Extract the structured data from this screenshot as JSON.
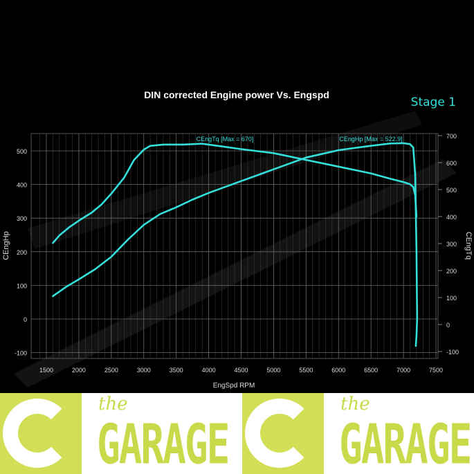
{
  "chart_data": {
    "type": "line",
    "title": "DIN corrected Engine power Vs. Engspd",
    "badge": "Stage 1",
    "xlabel": "EngSpd RPM",
    "ylabel_left": "CEngHp",
    "ylabel_right": "CEngTq",
    "xlim": [
      1300,
      7600
    ],
    "ylim_left": [
      -110,
      555
    ],
    "ylim_right": [
      -115,
      715
    ],
    "x_ticks": [
      1500,
      2000,
      2500,
      3000,
      3500,
      4000,
      4500,
      5000,
      5500,
      6000,
      6500,
      7000,
      7500
    ],
    "y_ticks_left": [
      -100,
      0,
      100,
      200,
      300,
      400,
      500
    ],
    "y_ticks_right": [
      -100,
      0,
      100,
      200,
      300,
      400,
      500,
      600,
      700
    ],
    "grid": true,
    "line_color": "#33e0dc",
    "series": [
      {
        "name": "CEngHp",
        "axis": "left",
        "annotation": "CEngHp [Max = 522.9]",
        "x": [
          1600,
          1800,
          2000,
          2250,
          2500,
          2750,
          3000,
          3250,
          3500,
          3750,
          4000,
          4500,
          5000,
          5500,
          6000,
          6500,
          6800,
          7000,
          7100,
          7150,
          7180,
          7200,
          7210,
          7200,
          7190
        ],
        "y": [
          68,
          95,
          118,
          148,
          185,
          235,
          280,
          312,
          332,
          355,
          375,
          410,
          445,
          480,
          502,
          515,
          522,
          522.9,
          520,
          510,
          430,
          200,
          0,
          -50,
          -80
        ]
      },
      {
        "name": "CEngTq",
        "axis": "right",
        "annotation": "CEngTq [Max = 670]",
        "x": [
          1600,
          1700,
          1850,
          2000,
          2200,
          2350,
          2500,
          2700,
          2850,
          3000,
          3100,
          3300,
          3600,
          3900,
          4200,
          4500,
          5000,
          5500,
          6000,
          6500,
          6800,
          7000,
          7100,
          7150,
          7180,
          7200
        ],
        "y": [
          302,
          330,
          360,
          385,
          415,
          445,
          485,
          545,
          610,
          648,
          662,
          667,
          667,
          670,
          660,
          650,
          635,
          610,
          585,
          560,
          540,
          528,
          520,
          510,
          480,
          400
        ]
      }
    ]
  },
  "banner": {
    "logos": [
      {
        "the": "the",
        "name": "GARAGE"
      },
      {
        "the": "the",
        "name": "GARAGE"
      }
    ],
    "background": "#ffffff",
    "brand_color": "#d2df56"
  }
}
